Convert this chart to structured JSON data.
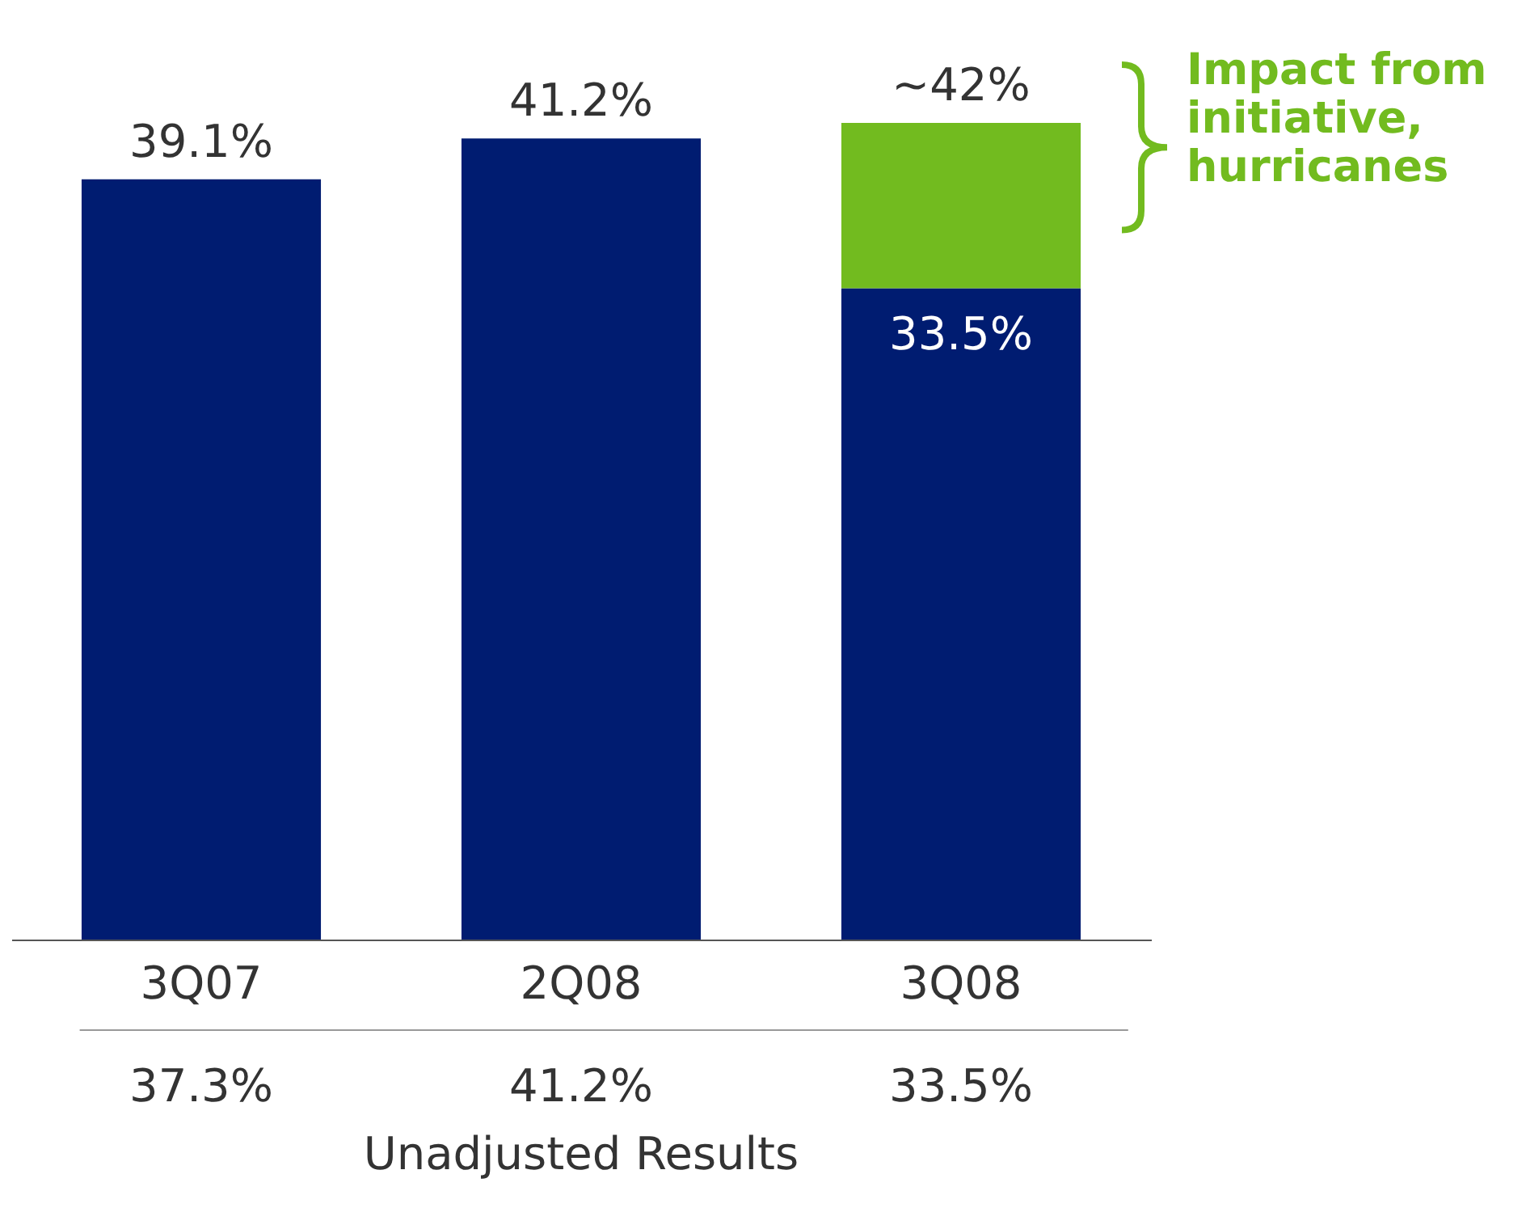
{
  "chart_data": {
    "type": "bar",
    "stacked": true,
    "categories": [
      "3Q07",
      "2Q08",
      "3Q08"
    ],
    "series": [
      {
        "color": "#001c71",
        "values": [
          39.1,
          41.2,
          33.5
        ],
        "value_labels": [
          null,
          null,
          "33.5%"
        ]
      },
      {
        "color": "#72bb1f",
        "values": [
          null,
          null,
          8.5
        ]
      }
    ],
    "totals": [
      "39.1%",
      "41.2%",
      "~42%"
    ],
    "annotations": [
      "37.3%",
      "41.2%",
      "33.5%",
      "Unadjusted Results",
      "Impact from initiative, hurricanes"
    ],
    "legend": false,
    "grid": false
  }
}
